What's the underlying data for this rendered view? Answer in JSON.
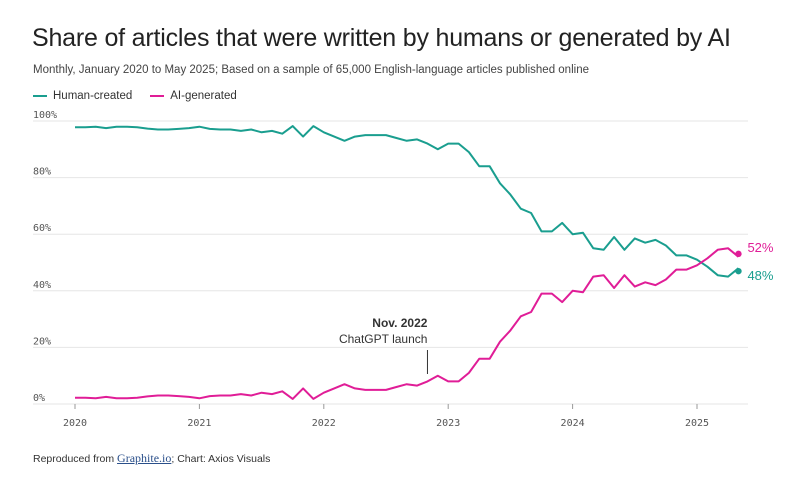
{
  "header": {
    "title": "Share of articles that were written by humans or generated by AI",
    "subtitle": "Monthly, January 2020 to May 2025; Based on a sample of 65,000 English-language articles published online"
  },
  "footer": {
    "prefix": "Reproduced from ",
    "link_text": "Graphite.io",
    "suffix": "; Chart: Axios Visuals"
  },
  "colors": {
    "human": "#1a9e8f",
    "ai": "#e01d97",
    "grid": "#e6e6e6"
  },
  "chart_data": {
    "type": "line",
    "title": "Share of articles that were written by humans or generated by AI",
    "subtitle": "Monthly, January 2020 to May 2025; Based on a sample of 65,000 English-language articles published online",
    "xlabel": "",
    "ylabel": "",
    "ylim": [
      0,
      100
    ],
    "x_start": "2020-01",
    "x_end": "2025-05",
    "x_ticks": [
      "2020",
      "2021",
      "2022",
      "2023",
      "2024",
      "2025"
    ],
    "y_ticks": [
      "0%",
      "20%",
      "40%",
      "60%",
      "80%",
      "100%"
    ],
    "legend": "top-left",
    "grid": true,
    "series": [
      {
        "name": "Human-created",
        "color": "#1a9e8f",
        "end_label": "48%",
        "values": [
          97.8,
          97.8,
          98.0,
          97.5,
          98.0,
          98.0,
          97.8,
          97.3,
          97.0,
          97.0,
          97.2,
          97.5,
          98.0,
          97.2,
          97.0,
          97.0,
          96.5,
          97.0,
          96.0,
          96.5,
          95.5,
          98.2,
          94.5,
          98.2,
          96.0,
          94.5,
          93.0,
          94.5,
          95.0,
          95.0,
          95.0,
          94.0,
          93.0,
          93.5,
          92.0,
          90.0,
          92.0,
          92.0,
          89.0,
          84.0,
          84.0,
          78.0,
          74.0,
          69.0,
          67.5,
          61.0,
          61.0,
          64.0,
          60.0,
          60.5,
          55.0,
          54.5,
          59.0,
          54.5,
          58.5,
          57.0,
          58.0,
          56.0,
          52.5,
          52.5,
          51.0,
          48.5,
          45.5,
          45.0,
          48.0
        ]
      },
      {
        "name": "AI-generated",
        "color": "#e01d97",
        "end_label": "52%",
        "values": [
          2.2,
          2.2,
          2.0,
          2.5,
          2.0,
          2.0,
          2.2,
          2.7,
          3.0,
          3.0,
          2.8,
          2.5,
          2.0,
          2.8,
          3.0,
          3.0,
          3.5,
          3.0,
          4.0,
          3.5,
          4.5,
          1.8,
          5.5,
          1.8,
          4.0,
          5.5,
          7.0,
          5.5,
          5.0,
          5.0,
          5.0,
          6.0,
          7.0,
          6.5,
          8.0,
          10.0,
          8.0,
          8.0,
          11.0,
          16.0,
          16.0,
          22.0,
          26.0,
          31.0,
          32.5,
          39.0,
          39.0,
          36.0,
          40.0,
          39.5,
          45.0,
          45.5,
          41.0,
          45.5,
          41.5,
          43.0,
          42.0,
          44.0,
          47.5,
          47.5,
          49.0,
          51.5,
          54.5,
          55.0,
          52.0
        ]
      }
    ],
    "annotations": [
      {
        "date": "2022-11",
        "line1": "Nov. 2022",
        "line2": "ChatGPT launch"
      }
    ]
  }
}
